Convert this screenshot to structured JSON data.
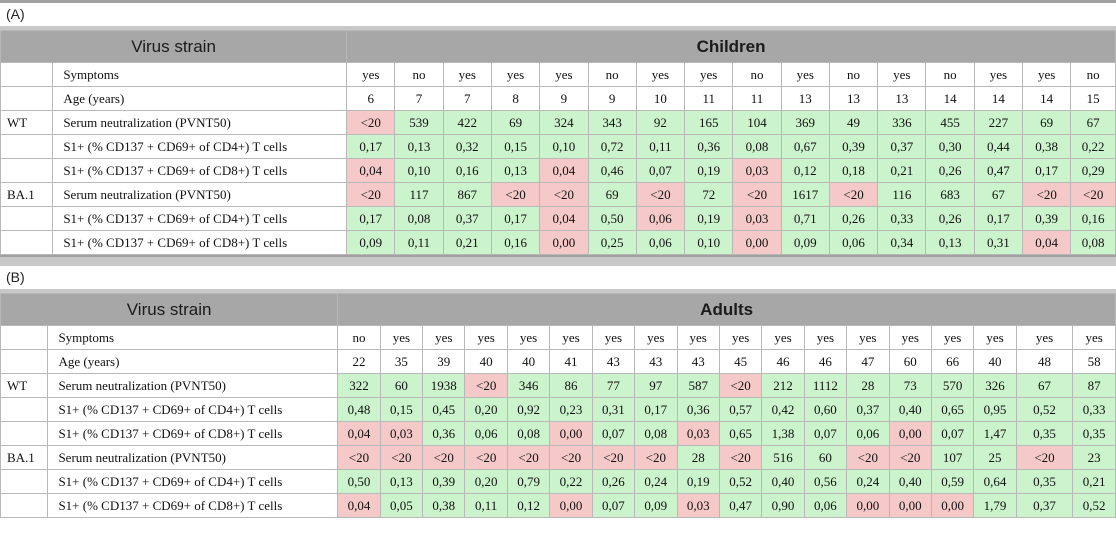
{
  "colors": {
    "header_bg": "#a7a7a7",
    "good": "#ccf4cc",
    "bad": "#f6c9c9"
  },
  "row_labels": {
    "symptoms": "Symptoms",
    "age": "Age (years)",
    "serum": "Serum neutralization (PVNT50)",
    "cd4": "S1+ (% CD137 + CD69+ of CD4+) T cells",
    "cd8": "S1+ (% CD137 + CD69+ of CD8+) T cells"
  },
  "panels": [
    {
      "label": "(A)",
      "virus_strain_header": "Virus strain",
      "group_header": "Children",
      "symptoms": [
        "yes",
        "no",
        "yes",
        "yes",
        "yes",
        "no",
        "yes",
        "yes",
        "no",
        "yes",
        "no",
        "yes",
        "no",
        "yes",
        "yes",
        "no"
      ],
      "ages": [
        "6",
        "7",
        "7",
        "8",
        "9",
        "9",
        "10",
        "11",
        "11",
        "13",
        "13",
        "13",
        "14",
        "14",
        "14",
        "15"
      ],
      "strains": [
        {
          "name": "WT",
          "rows": [
            {
              "label_key": "serum",
              "values": [
                "<20",
                "539",
                "422",
                "69",
                "324",
                "343",
                "92",
                "165",
                "104",
                "369",
                "49",
                "336",
                "455",
                "227",
                "69",
                "67"
              ],
              "status": [
                "r",
                "g",
                "g",
                "g",
                "g",
                "g",
                "g",
                "g",
                "g",
                "g",
                "g",
                "g",
                "g",
                "g",
                "g",
                "g"
              ]
            },
            {
              "label_key": "cd4",
              "values": [
                "0,17",
                "0,13",
                "0,32",
                "0,15",
                "0,10",
                "0,72",
                "0,11",
                "0,36",
                "0,08",
                "0,67",
                "0,39",
                "0,37",
                "0,30",
                "0,44",
                "0,38",
                "0,22"
              ],
              "status": [
                "g",
                "g",
                "g",
                "g",
                "g",
                "g",
                "g",
                "g",
                "g",
                "g",
                "g",
                "g",
                "g",
                "g",
                "g",
                "g"
              ]
            },
            {
              "label_key": "cd8",
              "values": [
                "0,04",
                "0,10",
                "0,16",
                "0,13",
                "0,04",
                "0,46",
                "0,07",
                "0,19",
                "0,03",
                "0,12",
                "0,18",
                "0,21",
                "0,26",
                "0,47",
                "0,17",
                "0,29"
              ],
              "status": [
                "r",
                "g",
                "g",
                "g",
                "r",
                "g",
                "g",
                "g",
                "r",
                "g",
                "g",
                "g",
                "g",
                "g",
                "g",
                "g"
              ]
            }
          ]
        },
        {
          "name": "BA.1",
          "rows": [
            {
              "label_key": "serum",
              "values": [
                "<20",
                "117",
                "867",
                "<20",
                "<20",
                "69",
                "<20",
                "72",
                "<20",
                "1617",
                "<20",
                "116",
                "683",
                "67",
                "<20",
                "<20"
              ],
              "status": [
                "r",
                "g",
                "g",
                "r",
                "r",
                "g",
                "r",
                "g",
                "r",
                "g",
                "r",
                "g",
                "g",
                "g",
                "r",
                "r"
              ]
            },
            {
              "label_key": "cd4",
              "values": [
                "0,17",
                "0,08",
                "0,37",
                "0,17",
                "0,04",
                "0,50",
                "0,06",
                "0,19",
                "0,03",
                "0,71",
                "0,26",
                "0,33",
                "0,26",
                "0,17",
                "0,39",
                "0,16"
              ],
              "status": [
                "g",
                "g",
                "g",
                "g",
                "r",
                "g",
                "r",
                "g",
                "r",
                "g",
                "g",
                "g",
                "g",
                "g",
                "g",
                "g"
              ]
            },
            {
              "label_key": "cd8",
              "values": [
                "0,09",
                "0,11",
                "0,21",
                "0,16",
                "0,00",
                "0,25",
                "0,06",
                "0,10",
                "0,00",
                "0,09",
                "0,06",
                "0,34",
                "0,13",
                "0,31",
                "0,04",
                "0,08"
              ],
              "status": [
                "g",
                "g",
                "g",
                "g",
                "r",
                "g",
                "g",
                "g",
                "r",
                "g",
                "g",
                "g",
                "g",
                "g",
                "r",
                "g"
              ]
            }
          ]
        }
      ]
    },
    {
      "label": "(B)",
      "virus_strain_header": "Virus strain",
      "group_header": "Adults",
      "symptoms": [
        "no",
        "yes",
        "yes",
        "yes",
        "yes",
        "yes",
        "yes",
        "yes",
        "yes",
        "yes",
        "yes",
        "yes",
        "yes",
        "yes",
        "yes",
        "yes",
        "yes",
        "yes"
      ],
      "ages": [
        "22",
        "35",
        "39",
        "40",
        "40",
        "41",
        "43",
        "43",
        "43",
        "45",
        "46",
        "46",
        "47",
        "60",
        "66",
        "40",
        "48",
        "58"
      ],
      "strains": [
        {
          "name": "WT",
          "rows": [
            {
              "label_key": "serum",
              "values": [
                "322",
                "60",
                "1938",
                "<20",
                "346",
                "86",
                "77",
                "97",
                "587",
                "<20",
                "212",
                "1112",
                "28",
                "73",
                "570",
                "326",
                "67",
                "87"
              ],
              "status": [
                "g",
                "g",
                "g",
                "r",
                "g",
                "g",
                "g",
                "g",
                "g",
                "r",
                "g",
                "g",
                "g",
                "g",
                "g",
                "g",
                "g",
                "g"
              ]
            },
            {
              "label_key": "cd4",
              "values": [
                "0,48",
                "0,15",
                "0,45",
                "0,20",
                "0,92",
                "0,23",
                "0,31",
                "0,17",
                "0,36",
                "0,57",
                "0,42",
                "0,60",
                "0,37",
                "0,40",
                "0,65",
                "0,95",
                "0,52",
                "0,33"
              ],
              "status": [
                "g",
                "g",
                "g",
                "g",
                "g",
                "g",
                "g",
                "g",
                "g",
                "g",
                "g",
                "g",
                "g",
                "g",
                "g",
                "g",
                "g",
                "g"
              ]
            },
            {
              "label_key": "cd8",
              "values": [
                "0,04",
                "0,03",
                "0,36",
                "0,06",
                "0,08",
                "0,00",
                "0,07",
                "0,08",
                "0,03",
                "0,65",
                "1,38",
                "0,07",
                "0,06",
                "0,00",
                "0,07",
                "1,47",
                "0,35",
                "0,35"
              ],
              "status": [
                "r",
                "r",
                "g",
                "g",
                "g",
                "r",
                "g",
                "g",
                "r",
                "g",
                "g",
                "g",
                "g",
                "r",
                "g",
                "g",
                "g",
                "g"
              ]
            }
          ]
        },
        {
          "name": "BA.1",
          "rows": [
            {
              "label_key": "serum",
              "values": [
                "<20",
                "<20",
                "<20",
                "<20",
                "<20",
                "<20",
                "<20",
                "<20",
                "28",
                "<20",
                "516",
                "60",
                "<20",
                "<20",
                "107",
                "25",
                "<20",
                "23"
              ],
              "status": [
                "r",
                "r",
                "r",
                "r",
                "r",
                "r",
                "r",
                "r",
                "g",
                "r",
                "g",
                "g",
                "r",
                "r",
                "g",
                "g",
                "r",
                "g"
              ]
            },
            {
              "label_key": "cd4",
              "values": [
                "0,50",
                "0,13",
                "0,39",
                "0,20",
                "0,79",
                "0,22",
                "0,26",
                "0,24",
                "0,19",
                "0,52",
                "0,40",
                "0,56",
                "0,24",
                "0,40",
                "0,59",
                "0,64",
                "0,35",
                "0,21"
              ],
              "status": [
                "g",
                "g",
                "g",
                "g",
                "g",
                "g",
                "g",
                "g",
                "g",
                "g",
                "g",
                "g",
                "g",
                "g",
                "g",
                "g",
                "g",
                "g"
              ]
            },
            {
              "label_key": "cd8",
              "values": [
                "0,04",
                "0,05",
                "0,38",
                "0,11",
                "0,12",
                "0,00",
                "0,07",
                "0,09",
                "0,03",
                "0,47",
                "0,90",
                "0,06",
                "0,00",
                "0,00",
                "0,00",
                "1,79",
                "0,37",
                "0,52"
              ],
              "status": [
                "r",
                "g",
                "g",
                "g",
                "g",
                "r",
                "g",
                "g",
                "r",
                "g",
                "g",
                "g",
                "r",
                "r",
                "r",
                "g",
                "g",
                "g"
              ]
            }
          ]
        }
      ]
    }
  ]
}
